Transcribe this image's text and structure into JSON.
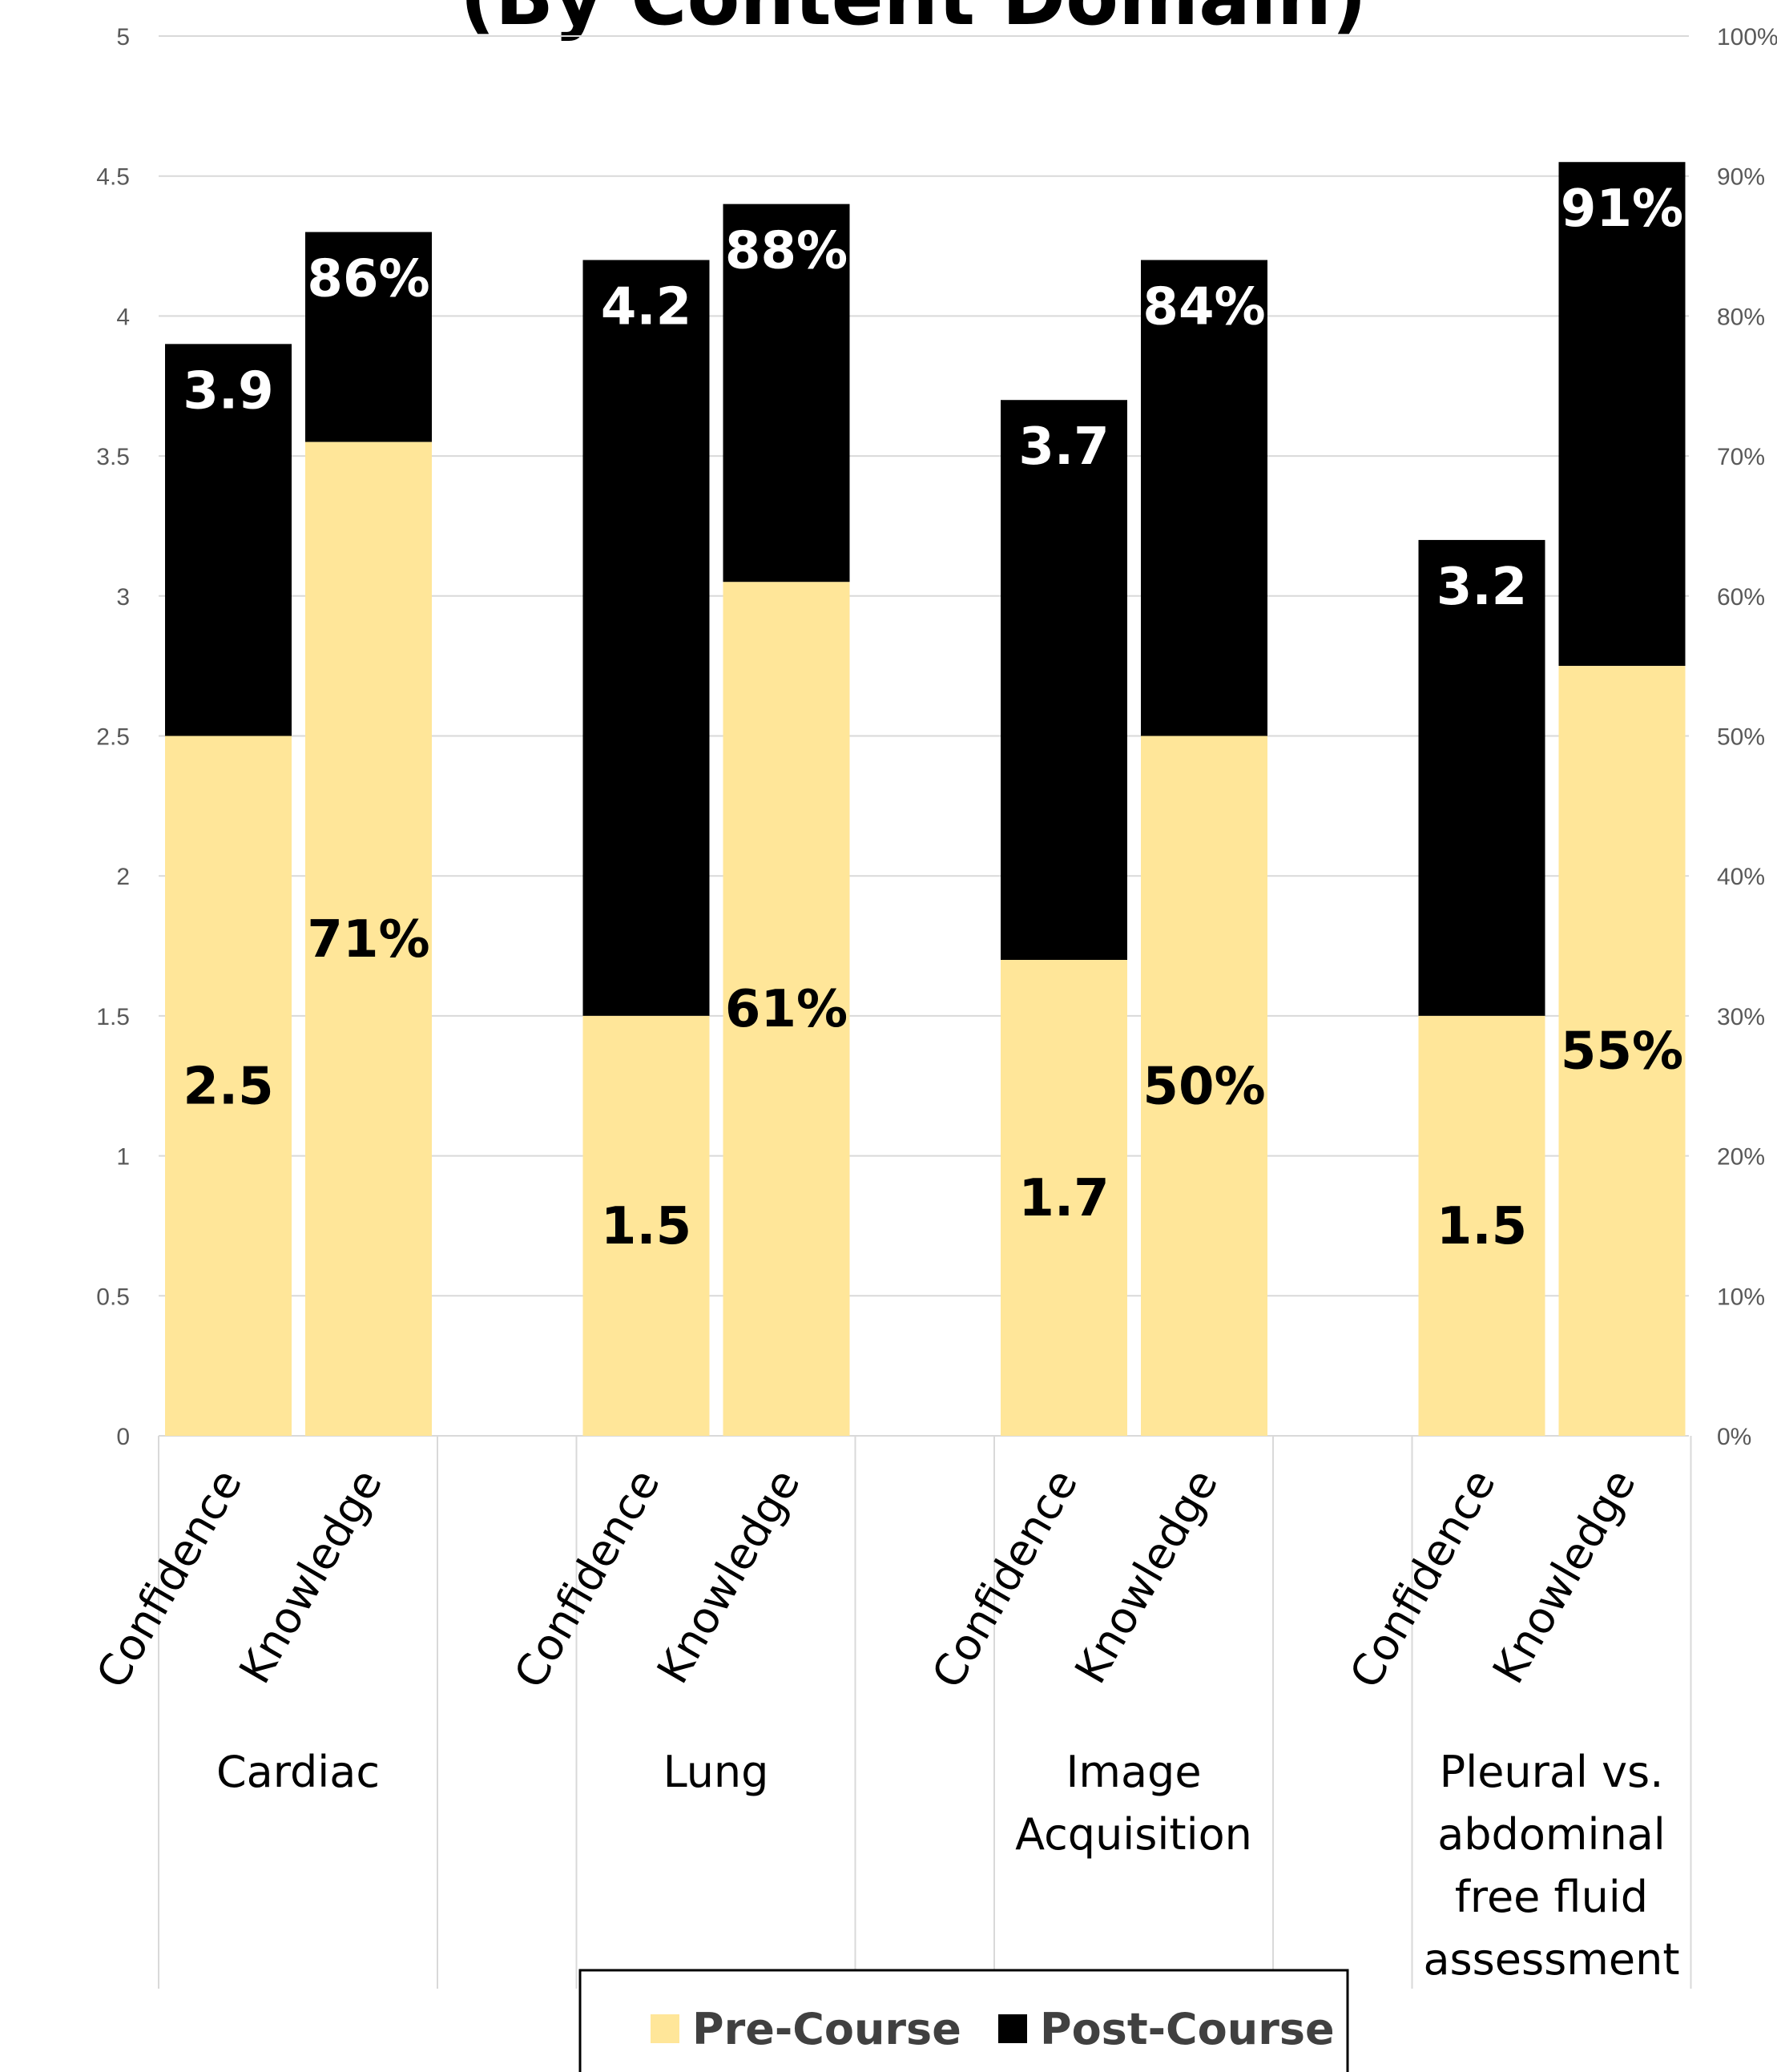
{
  "chart_data": {
    "type": "bar",
    "stacked": true,
    "title": "(By Content Domain)",
    "groups": [
      "Cardiac",
      "Lung",
      "Image Acquisition",
      "Pleural vs. abdominal free fluid assessment"
    ],
    "group_label_lines": [
      [
        "Cardiac"
      ],
      [
        "Lung"
      ],
      [
        "Image",
        "Acquisition"
      ],
      [
        "Pleural vs.",
        "abdominal",
        "free fluid",
        "assessment"
      ]
    ],
    "categories": [
      "Confidence",
      "Knowledge"
    ],
    "left_axis": {
      "ylim": [
        0,
        5
      ],
      "ticks": [
        "0",
        "0.5",
        "1",
        "1.5",
        "2",
        "2.5",
        "3",
        "3.5",
        "4",
        "4.5",
        "5"
      ]
    },
    "right_axis": {
      "ylim": [
        0,
        100
      ],
      "ticks": [
        "0%",
        "10%",
        "20%",
        "30%",
        "40%",
        "50%",
        "60%",
        "70%",
        "80%",
        "90%",
        "100%"
      ]
    },
    "bars": [
      {
        "group": "Cardiac",
        "category": "Confidence",
        "axis": "left",
        "pre": 2.5,
        "post": 3.9,
        "pre_label": "2.5",
        "post_label": "3.9"
      },
      {
        "group": "Cardiac",
        "category": "Knowledge",
        "axis": "right",
        "pre": 71,
        "post": 86,
        "pre_label": "71%",
        "post_label": "86%"
      },
      {
        "group": "Lung",
        "category": "Confidence",
        "axis": "left",
        "pre": 1.5,
        "post": 4.2,
        "pre_label": "1.5",
        "post_label": "4.2"
      },
      {
        "group": "Lung",
        "category": "Knowledge",
        "axis": "right",
        "pre": 61,
        "post": 88,
        "pre_label": "61%",
        "post_label": "88%"
      },
      {
        "group": "Image Acquisition",
        "category": "Confidence",
        "axis": "left",
        "pre": 1.7,
        "post": 3.7,
        "pre_label": "1.7",
        "post_label": "3.7"
      },
      {
        "group": "Image Acquisition",
        "category": "Knowledge",
        "axis": "right",
        "pre": 50,
        "post": 84,
        "pre_label": "50%",
        "post_label": "84%"
      },
      {
        "group": "Pleural vs. abdominal free fluid assessment",
        "category": "Confidence",
        "axis": "left",
        "pre": 1.5,
        "post": 3.2,
        "pre_label": "1.5",
        "post_label": "3.2"
      },
      {
        "group": "Pleural vs. abdominal free fluid assessment",
        "category": "Knowledge",
        "axis": "right",
        "pre": 55,
        "post": 91,
        "pre_label": "55%",
        "post_label": "91%"
      }
    ],
    "series": [
      {
        "name": "Pre-Course",
        "color": "#FFE699"
      },
      {
        "name": "Post-Course",
        "color": "#000000"
      }
    ],
    "grid": true,
    "legend_position": "bottom"
  }
}
